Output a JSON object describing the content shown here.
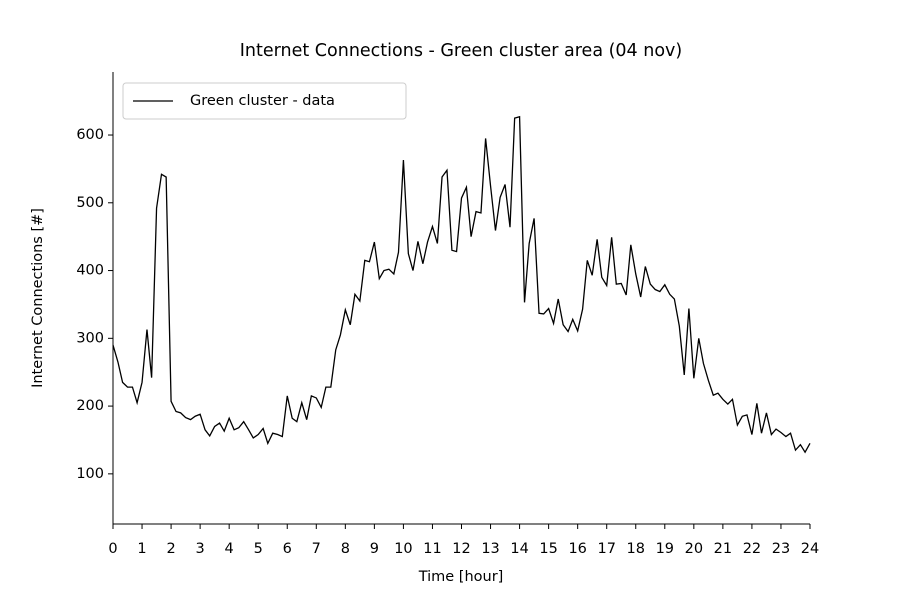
{
  "chart_data": {
    "type": "line",
    "title": "Internet Connections - Green cluster area (04 nov)",
    "x_label": "Time [hour]",
    "y_label": "Internet Connections [#]",
    "legend": "upper left",
    "x": [
      0,
      0.17,
      0.33,
      0.5,
      0.67,
      0.83,
      1,
      1.17,
      1.33,
      1.5,
      1.67,
      1.83,
      2,
      2.17,
      2.33,
      2.5,
      2.67,
      2.83,
      3,
      3.17,
      3.33,
      3.5,
      3.67,
      3.83,
      4,
      4.17,
      4.33,
      4.5,
      4.67,
      4.83,
      5,
      5.17,
      5.33,
      5.5,
      5.67,
      5.83,
      6,
      6.17,
      6.33,
      6.5,
      6.67,
      6.83,
      7,
      7.17,
      7.33,
      7.5,
      7.67,
      7.83,
      8,
      8.17,
      8.33,
      8.5,
      8.67,
      8.83,
      9,
      9.17,
      9.33,
      9.5,
      9.67,
      9.83,
      10,
      10.17,
      10.33,
      10.5,
      10.67,
      10.83,
      11,
      11.17,
      11.33,
      11.5,
      11.67,
      11.83,
      12,
      12.17,
      12.33,
      12.5,
      12.67,
      12.83,
      13,
      13.17,
      13.33,
      13.5,
      13.67,
      13.83,
      14,
      14.17,
      14.33,
      14.5,
      14.67,
      14.83,
      15,
      15.17,
      15.33,
      15.5,
      15.67,
      15.83,
      16,
      16.17,
      16.33,
      16.5,
      16.67,
      16.83,
      17,
      17.17,
      17.33,
      17.5,
      17.67,
      17.83,
      18,
      18.17,
      18.33,
      18.5,
      18.67,
      18.83,
      19,
      19.17,
      19.33,
      19.5,
      19.67,
      19.83,
      20,
      20.17,
      20.33,
      20.5,
      20.67,
      20.83,
      21,
      21.17,
      21.33,
      21.5,
      21.67,
      21.83,
      22,
      22.17,
      22.33,
      22.5,
      22.67,
      22.83,
      23,
      23.17,
      23.33,
      23.5,
      23.67,
      23.83,
      24
    ],
    "series": [
      {
        "name": "Green cluster - data",
        "color": "#000000",
        "values": [
          290,
          265,
          235,
          228,
          228,
          205,
          235,
          313,
          242,
          492,
          542,
          538,
          207,
          192,
          190,
          183,
          180,
          185,
          188,
          165,
          156,
          170,
          175,
          163,
          182,
          165,
          168,
          177,
          165,
          153,
          158,
          167,
          145,
          160,
          158,
          155,
          215,
          182,
          177,
          205,
          180,
          215,
          212,
          198,
          228,
          228,
          283,
          305,
          342,
          320,
          365,
          355,
          415,
          413,
          442,
          388,
          400,
          402,
          395,
          427,
          563,
          425,
          400,
          443,
          410,
          442,
          465,
          440,
          538,
          548,
          430,
          428,
          507,
          523,
          450,
          487,
          485,
          595,
          525,
          459,
          508,
          527,
          464,
          625,
          627,
          353,
          440,
          477,
          337,
          336,
          344,
          322,
          358,
          320,
          310,
          328,
          311,
          343,
          415,
          393,
          446,
          390,
          378,
          449,
          380,
          381,
          364,
          438,
          395,
          361,
          406,
          380,
          372,
          369,
          379,
          365,
          358,
          318,
          246,
          344,
          241,
          300,
          263,
          238,
          216,
          219,
          210,
          203,
          210,
          172,
          185,
          187,
          158,
          204,
          160,
          190,
          158,
          166,
          161,
          155,
          160,
          135,
          143,
          132,
          145
        ]
      }
    ],
    "xlim": [
      0,
      24
    ],
    "xticks": [
      0,
      1,
      2,
      3,
      4,
      5,
      6,
      7,
      8,
      9,
      10,
      11,
      12,
      13,
      14,
      15,
      16,
      17,
      18,
      19,
      20,
      21,
      22,
      23,
      24
    ],
    "ylim": [
      26,
      693
    ],
    "yticks": [
      100,
      200,
      300,
      400,
      500,
      600
    ]
  }
}
